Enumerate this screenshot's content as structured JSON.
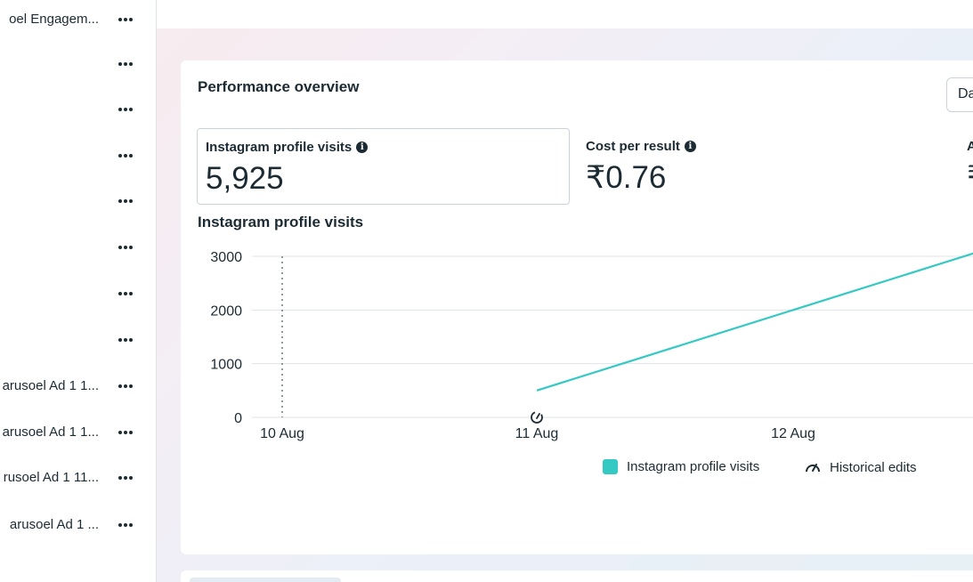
{
  "sidebar": {
    "rows": [
      {
        "label": "oel Engagem...",
        "top": 10
      },
      {
        "label": "",
        "top": 60
      },
      {
        "label": "",
        "top": 111
      },
      {
        "label": "",
        "top": 163
      },
      {
        "label": "",
        "top": 214
      },
      {
        "label": "",
        "top": 266
      },
      {
        "label": "",
        "top": 318
      },
      {
        "label": "",
        "top": 370
      },
      {
        "label": "arusoel Ad 1 1...",
        "top": 422
      },
      {
        "label": "arusoel Ad 1 1...",
        "top": 474
      },
      {
        "label": "rusoel Ad 1 11...",
        "top": 525
      },
      {
        "label": "arusoel Ad 1 ...",
        "top": 578
      }
    ]
  },
  "overview": {
    "title": "Performance overview",
    "date_button": "Da"
  },
  "metrics": [
    {
      "label": "Instagram profile visits",
      "value": "5,925"
    },
    {
      "label": "Cost per result",
      "value": "₹0.76"
    },
    {
      "label": "A",
      "value": "₹"
    }
  ],
  "chart_title": "Instagram profile visits",
  "chart_data": {
    "type": "line",
    "x_categories": [
      "10 Aug",
      "11 Aug",
      "12 Aug"
    ],
    "y_ticks": [
      0,
      1000,
      2000,
      3000
    ],
    "ylim": [
      0,
      3000
    ],
    "series": [
      {
        "name": "Instagram profile visits",
        "color": "#35c9c4",
        "points": [
          [
            "11 Aug",
            500
          ],
          [
            "12 Aug",
            2000
          ]
        ]
      }
    ],
    "historical_edit_marker": "11 Aug",
    "dotted_marker": "10 Aug"
  },
  "legend": {
    "series_label": "Instagram profile visits",
    "edits_label": "Historical edits"
  },
  "colors": {
    "series": "#35c9c4",
    "text": "#1c2b33",
    "grid": "#dfe3e8"
  }
}
